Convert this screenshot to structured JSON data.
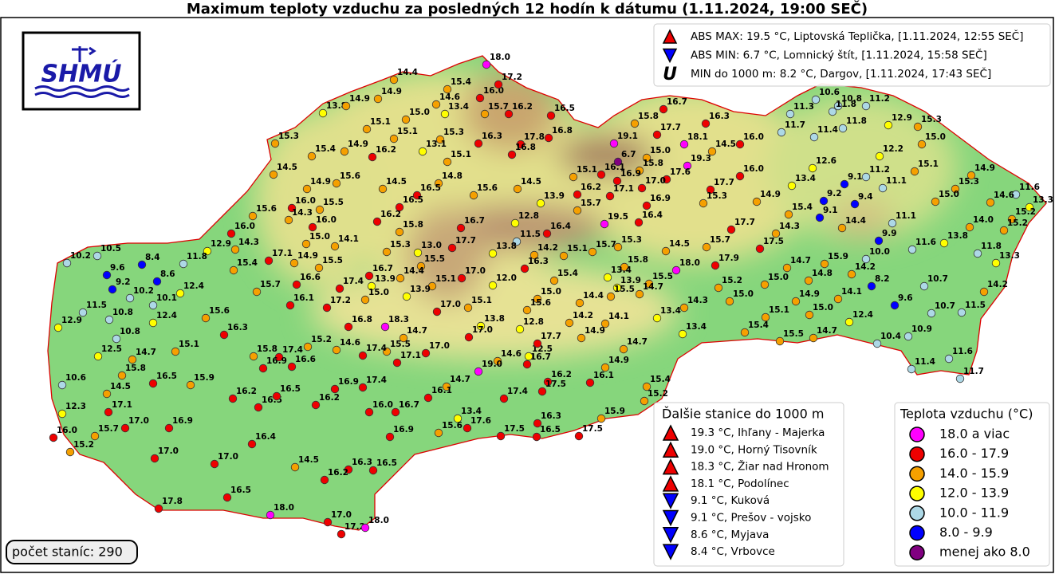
{
  "title": "Maximum teploty vzduchu za posledných 12 hodín k dátumu (1.11.2024, 19:00 SEČ)",
  "logo": "SHMÚ",
  "extremes": [
    {
      "marker": "up",
      "text": "ABS MAX: 19.5 °C, Liptovská Teplička, [1.11.2024, 12:55 SEČ]"
    },
    {
      "marker": "down",
      "text": "ABS MIN: 6.7 °C, Lomnický štít, [1.11.2024, 15:58 SEČ]"
    },
    {
      "marker": "U",
      "text": "MIN do 1000 m: 8.2 °C, Dargov, [1.11.2024, 17:43 SEČ]"
    }
  ],
  "other_stations": {
    "title": "Ďalšie stanice do 1000 m",
    "items": [
      {
        "marker": "up",
        "text": "19.3 °C, Ihľany - Majerka"
      },
      {
        "marker": "up",
        "text": "19.0 °C, Horný Tisovník"
      },
      {
        "marker": "up",
        "text": "18.3 °C, Žiar nad Hronom"
      },
      {
        "marker": "up",
        "text": "18.1 °C, Podolínec"
      },
      {
        "marker": "down",
        "text": "9.1 °C, Kuková"
      },
      {
        "marker": "down",
        "text": "9.1 °C, Prešov - vojsko"
      },
      {
        "marker": "down",
        "text": "8.6 °C, Myjava"
      },
      {
        "marker": "down",
        "text": "8.4 °C, Vrbovce"
      }
    ]
  },
  "legend": {
    "title": "Teplota vzduchu (°C)",
    "items": [
      {
        "label": "18.0 a viac",
        "color": "#ff00ff"
      },
      {
        "label": "16.0 - 17.9",
        "color": "#ee0000"
      },
      {
        "label": "14.0 - 15.9",
        "color": "#f5a000"
      },
      {
        "label": "12.0 - 13.9",
        "color": "#ffff00"
      },
      {
        "label": "10.0 - 11.9",
        "color": "#add8e6"
      },
      {
        "label": "8.0 - 9.9",
        "color": "#0000ff"
      },
      {
        "label": "menej ako 8.0",
        "color": "#800080"
      }
    ]
  },
  "station_count": "počet staníc: 290",
  "stations": {
    "values": [
      18.0,
      14.4,
      15.4,
      16.0,
      17.2,
      14.6,
      13.4,
      15.7,
      16.2,
      16.5,
      13.8,
      14.9,
      14.9,
      15.0,
      15.1,
      15.1,
      15.3,
      16.3,
      16.8,
      17.8,
      15.3,
      15.4,
      14.9,
      16.2,
      13.1,
      15.1,
      16.8,
      14.5,
      14.9,
      15.6,
      14.5,
      14.8,
      16.5,
      15.6,
      14.5,
      16.0,
      15.5,
      16.5,
      13.9,
      15.6,
      14.3,
      16.0,
      16.2,
      15.8,
      16.7,
      12.8,
      16.0,
      15.0,
      14.1,
      15.3,
      11.5,
      16.4,
      12.9,
      14.3,
      17.1,
      14.9,
      13.0,
      17.7,
      13.8,
      14.2,
      15.1,
      15.4,
      15.5,
      16.7,
      15.5,
      16.3,
      15.7,
      16.6,
      17.4,
      13.9,
      14.4,
      15.1,
      17.0,
      12.0,
      16.1,
      15.0,
      13.9,
      15.0,
      17.2,
      17.0,
      15.1,
      15.6,
      16.8,
      18.3,
      13.8,
      12.8,
      14.7,
      17.0,
      15.2,
      14.6,
      15.5,
      17.0,
      17.4,
      17.1,
      17.4,
      16.6,
      14.6,
      19.0,
      14.7,
      17.4,
      16.9,
      16.1,
      17.4,
      16.0,
      16.7,
      13.4,
      17.6,
      15.6,
      16.9,
      17.5,
      16.7,
      15.8,
      16.3,
      19.1,
      17.7,
      18.1,
      14.5,
      16.0,
      15.0,
      6.7,
      19.3,
      15.8,
      16.1,
      16.9,
      17.6,
      15.1,
      16.0,
      17.0,
      16.2,
      17.1,
      17.7,
      16.9,
      15.3,
      14.9,
      15.7,
      16.4,
      19.5,
      17.7,
      15.7,
      17.5,
      14.5,
      15.3,
      15.7,
      18.0,
      17.9,
      15.8,
      13.4,
      15.4,
      13.9,
      15.5,
      14.7,
      15.5,
      15.2,
      15.0,
      15.0,
      14.4,
      14.3,
      13.4,
      14.1,
      14.2,
      14.9,
      13.4,
      15.4,
      15.1,
      15.5,
      14.7,
      14.9,
      16.1,
      16.2,
      15.4,
      17.5,
      15.2,
      16.7,
      12.5,
      17.7,
      15.9,
      17.5,
      16.3,
      16.5,
      10.6,
      10.8,
      11.3,
      11.8,
      11.2,
      11.8,
      11.7,
      11.4,
      12.9,
      15.3,
      15.0,
      12.2,
      12.6,
      15.1,
      14.9,
      11.2,
      13.4,
      9.1,
      11.1,
      15.3,
      11.6,
      9.2,
      9.4,
      15.0,
      14.6,
      13.3,
      15.4,
      9.1,
      15.2,
      11.1,
      14.4,
      14.0,
      15.2,
      14.3,
      9.9,
      13.8,
      11.6,
      11.8,
      10.0,
      13.3,
      14.7,
      15.9,
      14.2,
      14.8,
      8.2,
      10.7,
      14.2,
      14.1,
      9.6,
      10.7,
      11.5,
      14.9,
      15.0,
      12.4,
      10.9,
      10.4,
      14.7,
      11.6,
      11.4,
      11.7,
      10.5,
      10.2,
      8.4,
      11.8,
      9.6,
      8.6,
      9.2,
      12.4,
      10.2,
      10.1,
      11.5,
      10.8,
      15.6,
      12.4,
      12.9,
      10.8,
      16.3,
      12.5,
      14.7,
      15.1,
      15.8,
      16.9,
      15.8,
      15.9,
      16.5,
      10.6,
      14.5,
      16.2,
      16.5,
      16.5,
      16.2,
      12.3,
      17.1,
      17.0,
      16.9,
      16.0,
      15.7,
      15.2,
      16.4,
      17.0,
      17.0,
      14.5,
      16.3,
      16.5,
      16.2,
      16.5,
      17.8,
      18.0,
      17.0,
      17.2,
      18.0
    ],
    "value_labels": [
      "18.0",
      "14.4",
      "15.4",
      "16.0",
      "17.2",
      "14.6",
      "13.4",
      "15.7",
      "16.2",
      "16.5",
      "13.8",
      "14.9",
      "14.9",
      "15.0",
      "15.1",
      "15.1",
      "15.3",
      "16.3",
      "16.8",
      "17.8",
      "15.3",
      "15.4",
      "14.9",
      "16.2",
      "13.1",
      "15.1",
      "16.8",
      "14.5",
      "14.9",
      "15.6",
      "14.5",
      "14.8",
      "16.5",
      "15.6",
      "14.5",
      "16.0",
      "15.5",
      "16.5",
      "13.9",
      "15.6",
      "14.3",
      "16.0",
      "16.2",
      "15.8",
      "16.7",
      "12.8",
      "16.0",
      "15.0",
      "14.1",
      "15.3",
      "11.5",
      "16.4",
      "12.9",
      "14.3",
      "17.1",
      "14.9",
      "13.0",
      "17.7",
      "13.8",
      "14.2",
      "15.1",
      "15.4",
      "15.5",
      "16.7",
      "15.5",
      "16.3",
      "15.7",
      "16.6",
      "17.4",
      "13.9",
      "14.4",
      "15.1",
      "17.0",
      "12.0",
      "16.1",
      "15.0",
      "13.9",
      "15.0",
      "17.2",
      "17.0",
      "15.1",
      "15.6",
      "16.8",
      "18.3",
      "13.8",
      "12.8",
      "14.7",
      "17.0",
      "15.2",
      "14.6",
      "15.5",
      "17.0",
      "17.4",
      "17.1",
      "17.4",
      "16.6",
      "14.6",
      "19.0",
      "14.7",
      "17.4",
      "16.9",
      "16.1",
      "17.4",
      "16.0",
      "16.7",
      "13.4",
      "17.6",
      "15.6",
      "16.9",
      "17.5",
      "16.7",
      "15.8",
      "16.3",
      "19.1",
      "17.7",
      "18.1",
      "14.5",
      "16.0",
      "15.0",
      "6.7",
      "19.3",
      "15.8",
      "16.1",
      "16.9",
      "17.6",
      "15.1",
      "16.0",
      "17.0",
      "16.2",
      "17.1",
      "17.7",
      "16.9",
      "15.3",
      "14.9",
      "15.7",
      "16.4",
      "19.5",
      "17.7",
      "15.7",
      "17.5",
      "14.5",
      "15.3",
      "15.7",
      "18.0",
      "17.9",
      "15.8",
      "13.4",
      "15.4",
      "13.9",
      "15.5",
      "14.7",
      "15.5",
      "15.2",
      "15.0",
      "15.0",
      "14.4",
      "14.3",
      "13.4",
      "14.1",
      "14.2",
      "14.9",
      "13.4",
      "15.4",
      "15.1",
      "15.5",
      "14.7",
      "14.9",
      "16.1",
      "16.2",
      "15.4",
      "17.5",
      "15.2",
      "16.7",
      "12.5",
      "17.7",
      "15.9",
      "17.5",
      "16.3",
      "16.5",
      "10.6",
      "10.8",
      "11.3",
      "11.8",
      "11.2",
      "11.8",
      "11.7",
      "11.4",
      "12.9",
      "15.3",
      "15.0",
      "12.2",
      "12.6",
      "15.1",
      "14.9",
      "11.2",
      "13.4",
      "9.1",
      "11.1",
      "15.3",
      "11.6",
      "9.2",
      "9.4",
      "15.0",
      "14.6",
      "13.3",
      "15.4",
      "9.1",
      "15.2",
      "11.1",
      "14.4",
      "14.0",
      "15.2",
      "14.3",
      "9.9",
      "13.8",
      "11.6",
      "11.8",
      "10.0",
      "13.3",
      "14.7",
      "15.9",
      "14.2",
      "14.8",
      "8.2",
      "10.7",
      "14.2",
      "14.1",
      "9.6",
      "10.7",
      "11.5",
      "14.9",
      "15.0",
      "12.4",
      "10.9",
      "10.4",
      "14.7",
      "11.6",
      "11.4",
      "11.7",
      "10.5",
      "10.2",
      "8.4",
      "11.8",
      "9.6",
      "8.6",
      "9.2",
      "12.4",
      "10.2",
      "10.1",
      "11.5",
      "10.8",
      "15.6",
      "12.4",
      "12.9",
      "10.8",
      "16.3",
      "12.5",
      "14.7",
      "15.1",
      "15.8",
      "16.9",
      "15.8",
      "15.9",
      "16.5",
      "10.6",
      "14.5",
      "16.2",
      "16.5",
      "16.5",
      "16.2",
      "12.3",
      "17.1",
      "17.0",
      "16.9",
      "16.0",
      "15.7",
      "15.2",
      "16.4",
      "17.0",
      "17.0",
      "14.5",
      "16.3",
      "16.5",
      "16.2",
      "16.5",
      "17.8",
      "18.0",
      "17.0",
      "17.2",
      "18.0"
    ]
  }
}
